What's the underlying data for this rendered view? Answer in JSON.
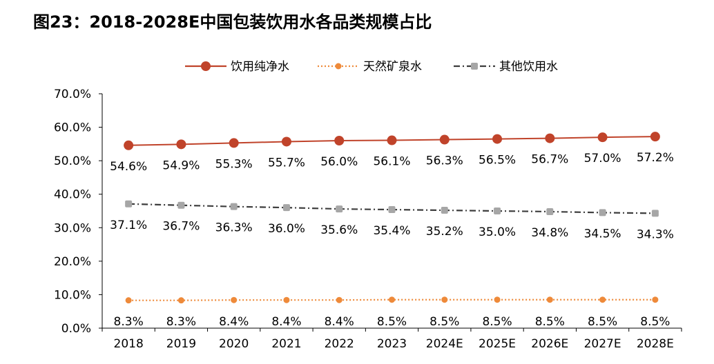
{
  "page": {
    "title": "图23：2018-2028E中国包装饮用水各品类规模占比"
  },
  "chart_data": {
    "type": "line",
    "title": "图23：2018-2028E中国包装饮用水各品类规模占比",
    "categories": [
      "2018",
      "2019",
      "2020",
      "2021",
      "2022",
      "2023",
      "2024E",
      "2025E",
      "2026E",
      "2027E",
      "2028E"
    ],
    "series": [
      {
        "name": "饮用纯净水",
        "color": "#c0432a",
        "style": "solid",
        "values": [
          54.6,
          54.9,
          55.3,
          55.7,
          56.0,
          56.1,
          56.3,
          56.5,
          56.7,
          57.0,
          57.2
        ],
        "labels": [
          "54.6%",
          "54.9%",
          "55.3%",
          "55.7%",
          "56.0%",
          "56.1%",
          "56.3%",
          "56.5%",
          "56.7%",
          "57.0%",
          "57.2%"
        ]
      },
      {
        "name": "天然矿泉水",
        "color": "#ee8a3a",
        "style": "dotted",
        "values": [
          8.3,
          8.3,
          8.4,
          8.4,
          8.4,
          8.5,
          8.5,
          8.5,
          8.5,
          8.5,
          8.5
        ],
        "labels": [
          "8.3%",
          "8.3%",
          "8.4%",
          "8.4%",
          "8.4%",
          "8.5%",
          "8.5%",
          "8.5%",
          "8.5%",
          "8.5%",
          "8.5%"
        ]
      },
      {
        "name": "其他饮用水",
        "color": "#3c3c3c",
        "marker_color": "#a6a6a6",
        "style": "dashdot",
        "values": [
          37.1,
          36.7,
          36.3,
          36.0,
          35.6,
          35.4,
          35.2,
          35.0,
          34.8,
          34.5,
          34.3
        ],
        "labels": [
          "37.1%",
          "36.7%",
          "36.3%",
          "36.0%",
          "35.6%",
          "35.4%",
          "35.2%",
          "35.0%",
          "34.8%",
          "34.5%",
          "34.3%"
        ]
      }
    ],
    "yticks": [
      "0.0%",
      "10.0%",
      "20.0%",
      "30.0%",
      "40.0%",
      "50.0%",
      "60.0%",
      "70.0%"
    ],
    "ylim": [
      0,
      70
    ],
    "grid": false,
    "legend_position": "top"
  }
}
